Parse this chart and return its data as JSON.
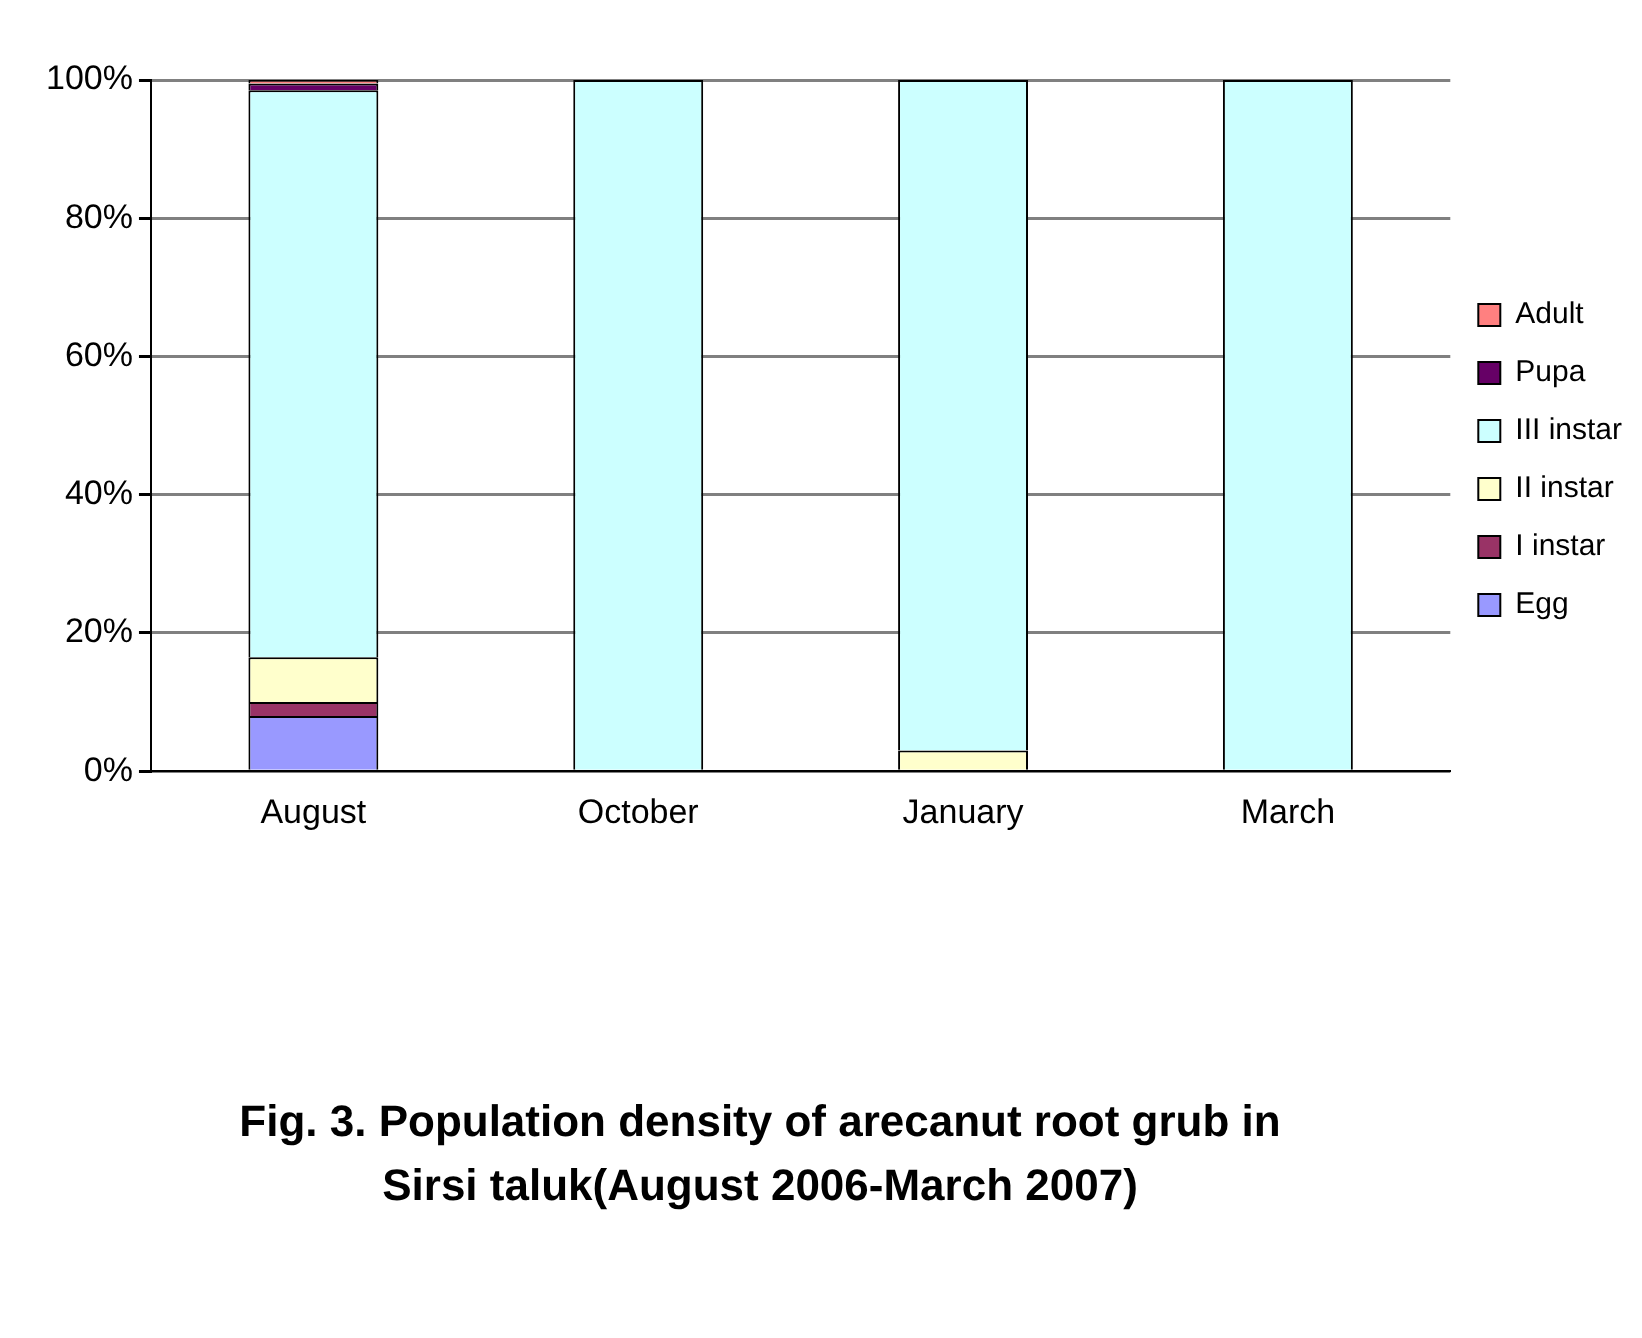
{
  "chart_data": {
    "type": "bar",
    "stacked": true,
    "title": "Fig. 3. Population density of arecanut root grub in Sirsi taluk(August 2006-March 2007)",
    "categories": [
      "August",
      "October",
      "January",
      "March"
    ],
    "series": [
      {
        "name": "Egg",
        "color": "#9999ff",
        "values": [
          8,
          0,
          0,
          0
        ]
      },
      {
        "name": "I instar",
        "color": "#993366",
        "values": [
          2,
          0,
          0,
          0
        ]
      },
      {
        "name": "II instar",
        "color": "#ffffcc",
        "values": [
          6.5,
          0,
          3,
          0
        ]
      },
      {
        "name": "III instar",
        "color": "#ccffff",
        "values": [
          82,
          100,
          97,
          100
        ]
      },
      {
        "name": "Pupa",
        "color": "#660066",
        "values": [
          1,
          0,
          0,
          0
        ]
      },
      {
        "name": "Adult",
        "color": "#ff8080",
        "values": [
          0.5,
          0,
          0,
          0
        ]
      }
    ],
    "ylim": [
      0,
      100
    ],
    "yticks": [
      {
        "value": 0,
        "label": "0%"
      },
      {
        "value": 20,
        "label": "20%"
      },
      {
        "value": 40,
        "label": "40%"
      },
      {
        "value": 60,
        "label": "60%"
      },
      {
        "value": 80,
        "label": "80%"
      },
      {
        "value": 100,
        "label": "100%"
      }
    ],
    "grid": "y",
    "legend": "right"
  }
}
